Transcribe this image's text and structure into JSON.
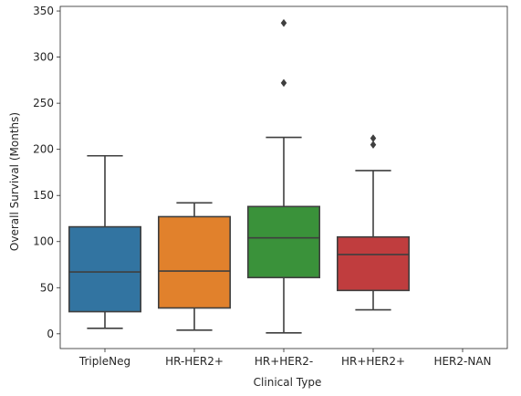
{
  "chart_data": {
    "type": "box",
    "xlabel": "Clinical Type",
    "ylabel": "Overall Survival (Months)",
    "ylim": [
      -16,
      355
    ],
    "yticks": [
      0,
      50,
      100,
      150,
      200,
      250,
      300,
      350
    ],
    "categories": [
      "TripleNeg",
      "HR-HER2+",
      "HR+HER2-",
      "HR+HER2+",
      "HER2-NAN"
    ],
    "boxes": [
      {
        "category": "TripleNeg",
        "whisker_low": 6,
        "q1": 24,
        "median": 67,
        "q3": 116,
        "whisker_high": 193,
        "outliers": [],
        "color": "#3274a1"
      },
      {
        "category": "HR-HER2+",
        "whisker_low": 4,
        "q1": 28,
        "median": 68,
        "q3": 127,
        "whisker_high": 142,
        "outliers": [],
        "color": "#e1812c"
      },
      {
        "category": "HR+HER2-",
        "whisker_low": 1,
        "q1": 61,
        "median": 104,
        "q3": 138,
        "whisker_high": 213,
        "outliers": [
          272,
          337
        ],
        "color": "#3a923a"
      },
      {
        "category": "HR+HER2+",
        "whisker_low": 26,
        "q1": 47,
        "median": 86,
        "q3": 105,
        "whisker_high": 177,
        "outliers": [
          205,
          212
        ],
        "color": "#c03d3e"
      },
      {
        "category": "HER2-NAN",
        "whisker_low": null,
        "q1": null,
        "median": null,
        "q3": null,
        "whisker_high": null,
        "outliers": [],
        "color": "#9372b2"
      }
    ],
    "line_color": "#3f3f3f",
    "grid": false,
    "legend": "none"
  }
}
